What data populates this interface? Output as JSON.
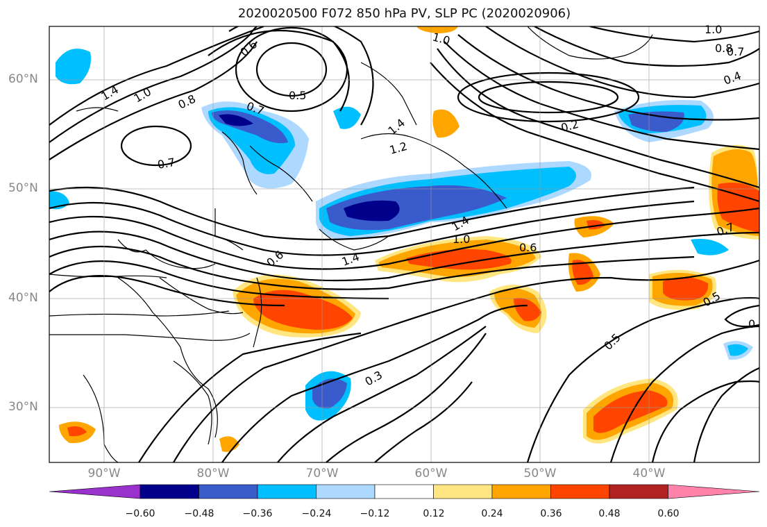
{
  "title": "2020020500 F072 850 hPa PV, SLP PC (2020020906)",
  "lat_labels": [
    "60°N",
    "50°N",
    "40°N",
    "30°N"
  ],
  "lon_labels": [
    "90°W",
    "80°W",
    "70°W",
    "60°W",
    "50°W",
    "40°W"
  ],
  "colorbar": {
    "ticks": [
      "−0.60",
      "−0.48",
      "−0.36",
      "−0.24",
      "−0.12",
      "0.12",
      "0.24",
      "0.36",
      "0.48",
      "0.60"
    ],
    "colors": [
      "#9932cc",
      "#00008b",
      "#3a5bcc",
      "#00bfff",
      "#add8ff",
      "#ffffff",
      "#ffe680",
      "#ffa500",
      "#ff4500",
      "#b22222",
      "#ff82ab"
    ]
  },
  "contour_labels": [
    "1.4",
    "1.0",
    "0.8",
    "0.6",
    "0.5",
    "0.7",
    "0.7",
    "1.0",
    "1.0",
    "0.8",
    "0.7",
    "0.4",
    "0.2",
    "1.4",
    "1.2",
    "1.4",
    "1.0",
    "0.6",
    "1.4",
    "0.6",
    "0.7",
    "0.5",
    "0.5",
    "0.3",
    "0"
  ]
}
